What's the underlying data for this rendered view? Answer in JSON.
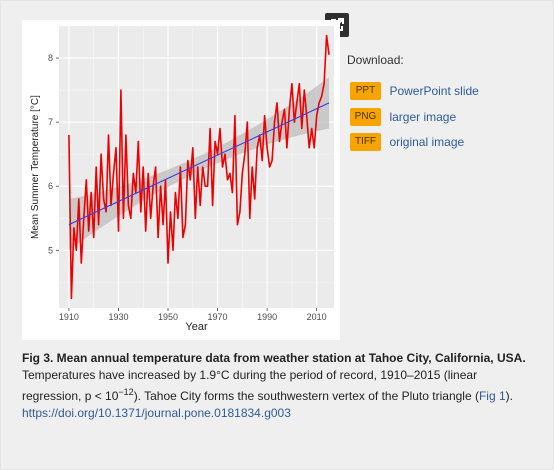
{
  "download": {
    "heading": "Download:",
    "items": [
      {
        "badge": "PPT",
        "label": "PowerPoint slide"
      },
      {
        "badge": "PNG",
        "label": "larger image"
      },
      {
        "badge": "TIFF",
        "label": "original image"
      }
    ]
  },
  "caption": {
    "title": "Fig 3. Mean annual temperature data from weather station at Tahoe City, California, USA.",
    "body_part1": "Temperatures have increased by 1.9°C during the period of record, 1910–2015 (linear regression, p < 10",
    "body_sup": "−12",
    "body_part2": "). Tahoe City forms the southwestern vertex of the Pluto triangle (",
    "fig_link": "Fig 1",
    "body_part3": ").",
    "doi": "https://doi.org/10.1371/journal.pone.0181834.g003"
  },
  "chart_data": {
    "type": "line",
    "xlabel": "Year",
    "ylabel": "Mean Summer Temperature [°C]",
    "xlim": [
      1906,
      2017
    ],
    "ylim": [
      4.1,
      8.5
    ],
    "xticks": [
      1910,
      1930,
      1950,
      1970,
      1990,
      2010
    ],
    "yticks": [
      5,
      6,
      7,
      8
    ],
    "grid": true,
    "colors": {
      "series": "#ee0000",
      "trend": "#3b3bd9",
      "band": "#bdbdbd",
      "plot_bg": "#ebebeb"
    },
    "series": [
      {
        "x": [
          1910,
          1911,
          1912,
          1913,
          1914,
          1915,
          1916,
          1917,
          1918,
          1919,
          1920,
          1921,
          1922,
          1923,
          1924,
          1925,
          1926,
          1927,
          1928,
          1929,
          1930,
          1931,
          1932,
          1933,
          1934,
          1935,
          1936,
          1937,
          1938,
          1939,
          1940,
          1941,
          1942,
          1943,
          1944,
          1945,
          1946,
          1947,
          1948,
          1949,
          1950,
          1951,
          1952,
          1953,
          1954,
          1955,
          1956,
          1957,
          1958,
          1959,
          1960,
          1961,
          1962,
          1963,
          1964,
          1965,
          1966,
          1967,
          1968,
          1969,
          1970,
          1971,
          1972,
          1973,
          1974,
          1975,
          1976,
          1977,
          1978,
          1979,
          1980,
          1981,
          1982,
          1983,
          1984,
          1985,
          1986,
          1987,
          1988,
          1989,
          1990,
          1991,
          1992,
          1993,
          1994,
          1995,
          1996,
          1997,
          1998,
          1999,
          2000,
          2001,
          2002,
          2003,
          2004,
          2005,
          2006,
          2007,
          2008,
          2009,
          2010,
          2011,
          2012,
          2013,
          2014,
          2015
        ],
        "y": [
          6.8,
          4.25,
          5.35,
          5.0,
          5.8,
          4.8,
          5.5,
          6.1,
          5.3,
          5.9,
          5.2,
          6.3,
          5.4,
          6.5,
          5.8,
          5.6,
          6.8,
          5.7,
          6.2,
          6.6,
          5.3,
          7.5,
          5.5,
          6.8,
          5.7,
          5.5,
          6.2,
          5.9,
          6.7,
          5.6,
          6.3,
          5.3,
          6.2,
          5.5,
          6.0,
          6.3,
          5.2,
          6.0,
          5.4,
          6.1,
          4.8,
          5.6,
          5.0,
          5.9,
          5.5,
          6.3,
          5.2,
          5.4,
          6.4,
          6.1,
          6.6,
          5.5,
          6.3,
          5.7,
          6.3,
          6.0,
          6.0,
          6.9,
          5.7,
          6.7,
          6.5,
          6.9,
          6.3,
          6.5,
          6.1,
          6.2,
          5.9,
          7.1,
          5.4,
          5.6,
          6.2,
          6.5,
          7.0,
          5.5,
          6.3,
          5.8,
          6.6,
          6.8,
          6.4,
          7.1,
          6.6,
          6.3,
          6.4,
          7.0,
          7.3,
          6.7,
          7.0,
          7.2,
          6.6,
          7.2,
          7.6,
          7.0,
          7.3,
          7.6,
          6.9,
          7.5,
          7.1,
          6.6,
          6.9,
          6.6,
          7.1,
          7.3,
          7.4,
          7.6,
          8.35,
          8.05
        ]
      }
    ],
    "trend": {
      "x": [
        1910,
        2015
      ],
      "y": [
        5.4,
        7.3
      ]
    }
  }
}
